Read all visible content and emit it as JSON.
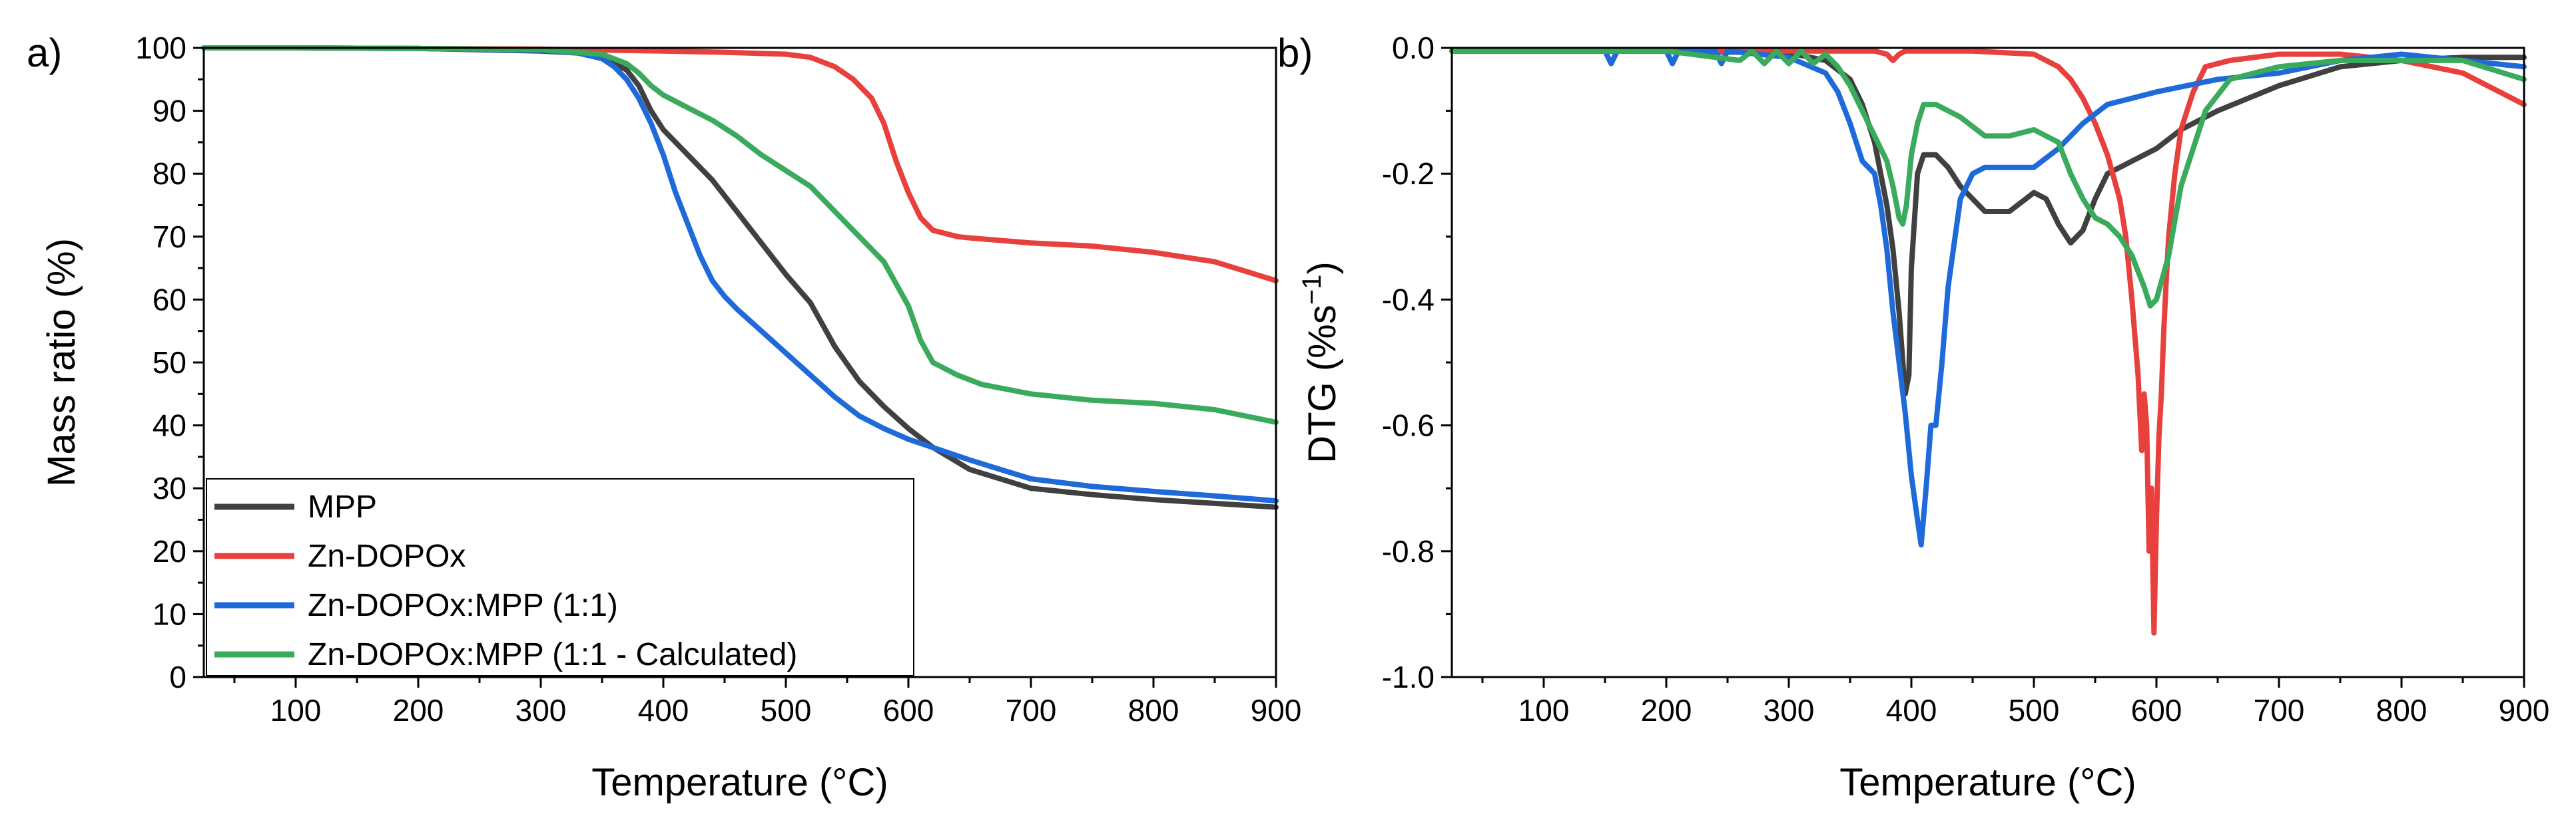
{
  "chart_data": [
    {
      "type": "line",
      "panel_label": "a)",
      "xlabel": "Temperature (°C)",
      "ylabel": "Mass ratio (%)",
      "xlim": [
        25,
        900
      ],
      "ylim": [
        0,
        100
      ],
      "xticks": [
        100,
        200,
        300,
        400,
        500,
        600,
        700,
        800,
        900
      ],
      "yticks": [
        0,
        10,
        20,
        30,
        40,
        50,
        60,
        70,
        80,
        90,
        100
      ],
      "grid": false,
      "legend": "bottom-left",
      "series": [
        {
          "name": "MPP",
          "color": "#404040",
          "x": [
            25,
            100,
            200,
            300,
            330,
            350,
            360,
            370,
            380,
            390,
            400,
            410,
            420,
            440,
            460,
            480,
            500,
            520,
            540,
            560,
            580,
            600,
            620,
            650,
            700,
            750,
            800,
            850,
            900
          ],
          "y": [
            100,
            100,
            99.9,
            99.5,
            99.2,
            98.5,
            97.5,
            96.5,
            94,
            90,
            87,
            85,
            83,
            79,
            74,
            69,
            64,
            59.5,
            52.5,
            47,
            43,
            39.5,
            36.5,
            33,
            30,
            29,
            28.2,
            27.6,
            27
          ]
        },
        {
          "name": "Zn-DOPOx",
          "color": "#e8403c",
          "x": [
            25,
            100,
            200,
            300,
            400,
            450,
            500,
            520,
            540,
            555,
            570,
            580,
            590,
            600,
            610,
            620,
            640,
            650,
            700,
            750,
            800,
            850,
            900
          ],
          "y": [
            100,
            100,
            99.9,
            99.8,
            99.5,
            99.3,
            99,
            98.5,
            97,
            95,
            92,
            88,
            82,
            77,
            73,
            71,
            70,
            69.8,
            69,
            68.5,
            67.5,
            66,
            63
          ]
        },
        {
          "name": "Zn-DOPOx:MPP (1:1)",
          "color": "#1f6ad9",
          "x": [
            25,
            100,
            200,
            300,
            330,
            350,
            360,
            370,
            380,
            390,
            400,
            410,
            420,
            430,
            440,
            450,
            460,
            480,
            500,
            520,
            540,
            560,
            580,
            600,
            650,
            700,
            750,
            800,
            850,
            900
          ],
          "y": [
            100,
            100,
            99.9,
            99.6,
            99.2,
            98.3,
            97,
            95,
            92,
            88,
            83,
            77,
            72,
            67,
            63,
            60.5,
            58.5,
            55,
            51.5,
            48,
            44.5,
            41.5,
            39.5,
            37.8,
            34.5,
            31.5,
            30.3,
            29.5,
            28.8,
            28
          ]
        },
        {
          "name": "Zn-DOPOx:MPP (1:1 - Calculated)",
          "color": "#3aaa5c",
          "x": [
            25,
            100,
            200,
            300,
            350,
            370,
            380,
            390,
            400,
            420,
            440,
            460,
            480,
            500,
            520,
            540,
            560,
            580,
            600,
            610,
            620,
            640,
            660,
            700,
            750,
            800,
            850,
            900
          ],
          "y": [
            100,
            100,
            99.9,
            99.7,
            99,
            97.5,
            96,
            94,
            92.5,
            90.5,
            88.5,
            86,
            83,
            80.5,
            78,
            74,
            70,
            66,
            59,
            53.5,
            50,
            48,
            46.5,
            45,
            44,
            43.5,
            42.5,
            40.5
          ]
        }
      ]
    },
    {
      "type": "line",
      "panel_label": "b)",
      "xlabel": "Temperature (°C)",
      "ylabel_main": "DTG (%s",
      "ylabel_sup": "−1",
      "ylabel_end": ")",
      "xlim": [
        25,
        900
      ],
      "ylim": [
        -1.0,
        0.0
      ],
      "xticks": [
        100,
        200,
        300,
        400,
        500,
        600,
        700,
        800,
        900
      ],
      "yticks": [
        -1.0,
        -0.8,
        -0.6,
        -0.4,
        -0.2,
        0.0
      ],
      "ytick_labels": [
        "-1.0",
        "-0.8",
        "-0.6",
        "-0.4",
        "-0.2",
        "0.0"
      ],
      "grid": false,
      "legend": "none",
      "series": [
        {
          "color": "#404040",
          "x": [
            25,
            100,
            200,
            300,
            330,
            350,
            360,
            370,
            380,
            385,
            390,
            395,
            398,
            400,
            405,
            410,
            420,
            430,
            440,
            460,
            480,
            500,
            510,
            520,
            530,
            540,
            550,
            560,
            580,
            600,
            620,
            650,
            700,
            750,
            800,
            850,
            900
          ],
          "y": [
            -0.005,
            -0.005,
            -0.005,
            -0.008,
            -0.02,
            -0.05,
            -0.09,
            -0.15,
            -0.25,
            -0.32,
            -0.42,
            -0.55,
            -0.52,
            -0.35,
            -0.2,
            -0.17,
            -0.17,
            -0.19,
            -0.22,
            -0.26,
            -0.26,
            -0.23,
            -0.24,
            -0.28,
            -0.31,
            -0.29,
            -0.24,
            -0.2,
            -0.18,
            -0.16,
            -0.13,
            -0.1,
            -0.06,
            -0.03,
            -0.02,
            -0.015,
            -0.015
          ]
        },
        {
          "color": "#e8403c",
          "x": [
            25,
            100,
            200,
            300,
            350,
            370,
            380,
            385,
            390,
            395,
            400,
            450,
            500,
            510,
            520,
            530,
            540,
            550,
            560,
            570,
            575,
            580,
            585,
            588,
            590,
            592,
            594,
            596,
            598,
            600,
            602,
            604,
            606,
            608,
            610,
            615,
            620,
            630,
            640,
            660,
            700,
            750,
            800,
            850,
            900
          ],
          "y": [
            -0.005,
            -0.005,
            -0.005,
            -0.005,
            -0.005,
            -0.005,
            -0.01,
            -0.02,
            -0.01,
            -0.005,
            -0.005,
            -0.005,
            -0.01,
            -0.02,
            -0.03,
            -0.05,
            -0.08,
            -0.12,
            -0.17,
            -0.24,
            -0.3,
            -0.4,
            -0.52,
            -0.64,
            -0.55,
            -0.6,
            -0.8,
            -0.7,
            -0.93,
            -0.75,
            -0.62,
            -0.55,
            -0.45,
            -0.37,
            -0.3,
            -0.2,
            -0.13,
            -0.07,
            -0.03,
            -0.02,
            -0.01,
            -0.01,
            -0.02,
            -0.04,
            -0.09
          ]
        },
        {
          "color": "#1f6ad9",
          "x": [
            25,
            100,
            150,
            155,
            160,
            200,
            205,
            210,
            240,
            245,
            250,
            300,
            330,
            340,
            350,
            360,
            370,
            375,
            380,
            385,
            390,
            395,
            400,
            405,
            408,
            412,
            416,
            420,
            425,
            430,
            440,
            450,
            460,
            480,
            500,
            520,
            540,
            560,
            580,
            600,
            650,
            700,
            750,
            800,
            850,
            900
          ],
          "y": [
            -0.005,
            -0.005,
            -0.005,
            -0.025,
            -0.005,
            -0.005,
            -0.025,
            -0.005,
            -0.005,
            -0.025,
            -0.005,
            -0.015,
            -0.04,
            -0.07,
            -0.12,
            -0.18,
            -0.2,
            -0.25,
            -0.32,
            -0.42,
            -0.5,
            -0.58,
            -0.68,
            -0.75,
            -0.79,
            -0.7,
            -0.6,
            -0.6,
            -0.5,
            -0.38,
            -0.24,
            -0.2,
            -0.19,
            -0.19,
            -0.19,
            -0.16,
            -0.12,
            -0.09,
            -0.08,
            -0.07,
            -0.05,
            -0.04,
            -0.02,
            -0.01,
            -0.02,
            -0.03
          ]
        },
        {
          "color": "#3aaa5c",
          "x": [
            25,
            100,
            200,
            260,
            270,
            280,
            290,
            300,
            310,
            320,
            330,
            340,
            350,
            360,
            370,
            380,
            385,
            390,
            393,
            396,
            400,
            405,
            410,
            420,
            440,
            460,
            480,
            500,
            520,
            530,
            540,
            550,
            560,
            570,
            580,
            590,
            595,
            600,
            610,
            620,
            640,
            660,
            700,
            750,
            800,
            850,
            900
          ],
          "y": [
            -0.005,
            -0.005,
            -0.005,
            -0.02,
            -0.005,
            -0.025,
            -0.005,
            -0.025,
            -0.005,
            -0.025,
            -0.01,
            -0.03,
            -0.06,
            -0.1,
            -0.14,
            -0.18,
            -0.22,
            -0.27,
            -0.28,
            -0.25,
            -0.17,
            -0.12,
            -0.09,
            -0.09,
            -0.11,
            -0.14,
            -0.14,
            -0.13,
            -0.15,
            -0.2,
            -0.24,
            -0.27,
            -0.28,
            -0.3,
            -0.33,
            -0.38,
            -0.41,
            -0.4,
            -0.33,
            -0.22,
            -0.1,
            -0.05,
            -0.03,
            -0.02,
            -0.02,
            -0.02,
            -0.05
          ]
        }
      ]
    }
  ]
}
